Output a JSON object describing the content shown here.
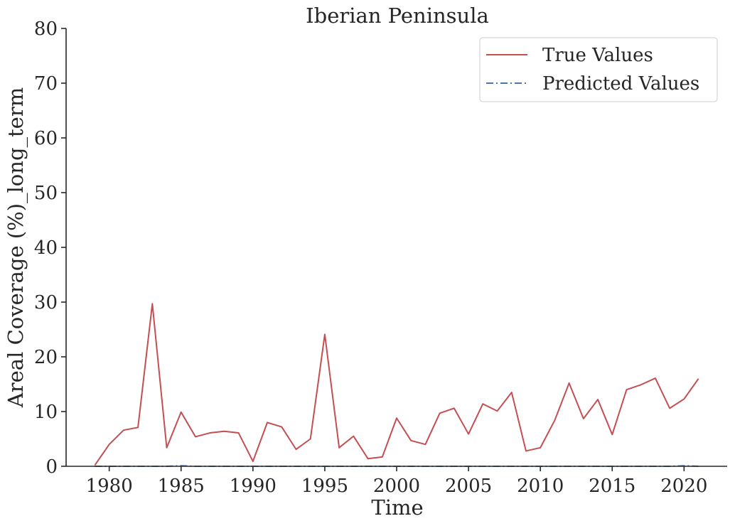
{
  "chart_data": {
    "type": "line",
    "title": "Iberian Peninsula",
    "xlabel": "Time",
    "ylabel": "Areal Coverage (%)_long_term",
    "xlim": [
      1977,
      2023
    ],
    "ylim": [
      0,
      80
    ],
    "xticks": [
      1980,
      1985,
      1990,
      1995,
      2000,
      2005,
      2010,
      2015,
      2020
    ],
    "yticks": [
      0,
      10,
      20,
      30,
      40,
      50,
      60,
      70,
      80
    ],
    "grid": false,
    "legend_position": "upper-right",
    "series": [
      {
        "name": "True Values",
        "color": "#c44e52",
        "linestyle": "solid",
        "x": [
          1979,
          1980,
          1981,
          1982,
          1983,
          1984,
          1985,
          1986,
          1987,
          1988,
          1989,
          1990,
          1991,
          1992,
          1993,
          1994,
          1995,
          1996,
          1997,
          1998,
          1999,
          2000,
          2001,
          2002,
          2003,
          2004,
          2005,
          2006,
          2007,
          2008,
          2009,
          2010,
          2011,
          2012,
          2013,
          2014,
          2015,
          2016,
          2017,
          2018,
          2019,
          2020,
          2021
        ],
        "values": [
          0.2,
          4.0,
          6.6,
          7.1,
          29.7,
          3.4,
          9.9,
          5.4,
          6.1,
          6.4,
          6.1,
          0.9,
          8.0,
          7.2,
          3.1,
          5.0,
          24.1,
          3.4,
          5.5,
          1.4,
          1.7,
          8.8,
          4.7,
          4.0,
          9.7,
          10.6,
          5.9,
          11.4,
          10.1,
          13.5,
          2.8,
          3.4,
          8.4,
          15.2,
          8.7,
          12.2,
          5.8,
          14.0,
          14.9,
          16.1,
          10.6,
          12.3,
          16.0
        ]
      },
      {
        "name": "Predicted Values",
        "color": "#4c72b0",
        "linestyle": "dashdot",
        "x": [
          1979,
          1980,
          1981,
          1982,
          1983,
          1984,
          1985,
          1986,
          1987,
          1988,
          1989,
          1990,
          1991,
          1992,
          1993,
          1994,
          1995,
          1996,
          1997,
          1998,
          1999,
          2000,
          2001,
          2002,
          2003,
          2004,
          2005,
          2006,
          2007,
          2008,
          2009,
          2010,
          2011,
          2012,
          2013,
          2014,
          2015,
          2016,
          2017,
          2018,
          2019,
          2020,
          2021
        ],
        "values": [
          0,
          0,
          0,
          0,
          0,
          0,
          0.1,
          0,
          0,
          0,
          0,
          0,
          0,
          0,
          0,
          0,
          0,
          0,
          0,
          0,
          0,
          0,
          0,
          0,
          0,
          0,
          0,
          0,
          0,
          0,
          0,
          0,
          0,
          0,
          0,
          0,
          0,
          0,
          0,
          0,
          0,
          0.1,
          0
        ]
      }
    ]
  }
}
